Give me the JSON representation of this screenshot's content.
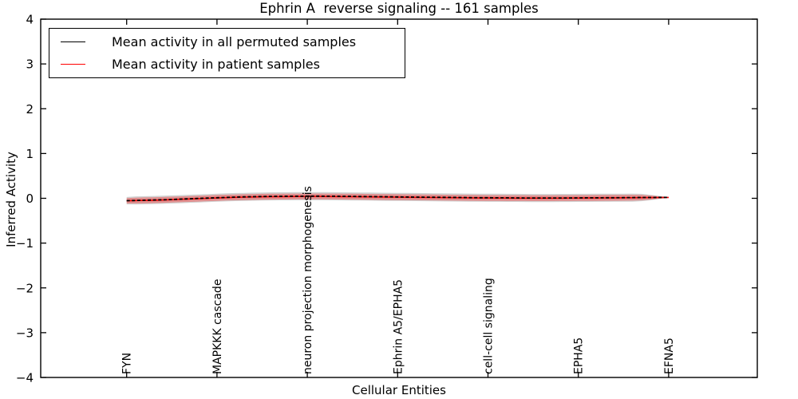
{
  "chart_data": {
    "type": "line",
    "title": "Ephrin A  reverse signaling -- 161 samples",
    "xlabel": "Cellular Entities",
    "ylabel": "Inferred Activity",
    "ylim": [
      -4,
      4
    ],
    "yticks": [
      -4,
      -3,
      -2,
      -1,
      0,
      1,
      2,
      3,
      4
    ],
    "x_tick_labels": [
      "FYN",
      "MAPKKK cascade",
      "neuron projection morphogenesis",
      "Ephrin A5/EPHA5",
      "cell-cell signaling",
      "EPHA5",
      "EFNA5"
    ],
    "n_points": 61,
    "grid": false,
    "legend_position": "upper left",
    "series": [
      {
        "name": "Mean activity in all permuted samples",
        "color": "#000000",
        "line_style": "dashed",
        "values": [
          -0.053,
          -0.048,
          -0.043,
          -0.038,
          -0.033,
          -0.026,
          -0.018,
          -0.01,
          -0.002,
          0.005,
          0.013,
          0.02,
          0.027,
          0.032,
          0.036,
          0.04,
          0.043,
          0.045,
          0.046,
          0.047,
          0.048,
          0.048,
          0.047,
          0.046,
          0.044,
          0.042,
          0.04,
          0.038,
          0.035,
          0.033,
          0.031,
          0.029,
          0.027,
          0.025,
          0.023,
          0.021,
          0.019,
          0.017,
          0.015,
          0.013,
          0.012,
          0.011,
          0.01,
          0.009,
          0.008,
          0.007,
          0.007,
          0.007,
          0.008,
          0.008,
          0.009,
          0.01,
          0.011,
          0.012,
          0.013,
          0.014,
          0.016,
          0.017,
          0.018,
          0.019,
          0.02
        ]
      },
      {
        "name": "Mean activity in patient samples",
        "color": "#ff0000",
        "line_style": "solid",
        "values": [
          -0.055,
          -0.05,
          -0.046,
          -0.042,
          -0.037,
          -0.03,
          -0.022,
          -0.015,
          -0.008,
          0.0,
          0.008,
          0.015,
          0.021,
          0.026,
          0.03,
          0.034,
          0.036,
          0.038,
          0.04,
          0.041,
          0.042,
          0.042,
          0.041,
          0.04,
          0.038,
          0.036,
          0.034,
          0.032,
          0.03,
          0.028,
          0.026,
          0.024,
          0.022,
          0.02,
          0.018,
          0.016,
          0.014,
          0.012,
          0.01,
          0.008,
          0.007,
          0.006,
          0.005,
          0.004,
          0.004,
          0.003,
          0.003,
          0.003,
          0.004,
          0.005,
          0.006,
          0.007,
          0.008,
          0.009,
          0.01,
          0.012,
          0.013,
          0.015,
          0.016,
          0.018,
          0.02
        ]
      }
    ],
    "bands": [
      {
        "name": "permuted-samples std band",
        "color": "rgba(0,0,0,0.18)",
        "center_series": 0,
        "half_widths": [
          0.082,
          0.09,
          0.09,
          0.09,
          0.09,
          0.09,
          0.09,
          0.09,
          0.09,
          0.09,
          0.09,
          0.09,
          0.09,
          0.09,
          0.09,
          0.09,
          0.09,
          0.09,
          0.09,
          0.09,
          0.09,
          0.09,
          0.09,
          0.09,
          0.09,
          0.09,
          0.09,
          0.09,
          0.09,
          0.09,
          0.09,
          0.09,
          0.09,
          0.09,
          0.09,
          0.09,
          0.09,
          0.09,
          0.09,
          0.09,
          0.09,
          0.09,
          0.09,
          0.09,
          0.09,
          0.09,
          0.09,
          0.09,
          0.09,
          0.09,
          0.09,
          0.09,
          0.09,
          0.09,
          0.09,
          0.09,
          0.09,
          0.082,
          0.06,
          0.035,
          0.012
        ]
      },
      {
        "name": "patient-samples std band",
        "color": "rgba(255,0,0,0.32)",
        "center_series": 1,
        "half_widths": [
          0.06,
          0.065,
          0.065,
          0.065,
          0.065,
          0.065,
          0.065,
          0.065,
          0.065,
          0.065,
          0.065,
          0.065,
          0.065,
          0.065,
          0.065,
          0.065,
          0.065,
          0.065,
          0.065,
          0.065,
          0.065,
          0.065,
          0.065,
          0.065,
          0.065,
          0.065,
          0.065,
          0.065,
          0.065,
          0.065,
          0.065,
          0.065,
          0.065,
          0.065,
          0.065,
          0.065,
          0.065,
          0.065,
          0.065,
          0.065,
          0.065,
          0.065,
          0.065,
          0.065,
          0.065,
          0.065,
          0.065,
          0.065,
          0.065,
          0.065,
          0.065,
          0.065,
          0.065,
          0.065,
          0.065,
          0.065,
          0.065,
          0.06,
          0.045,
          0.025,
          0.008
        ]
      }
    ]
  }
}
